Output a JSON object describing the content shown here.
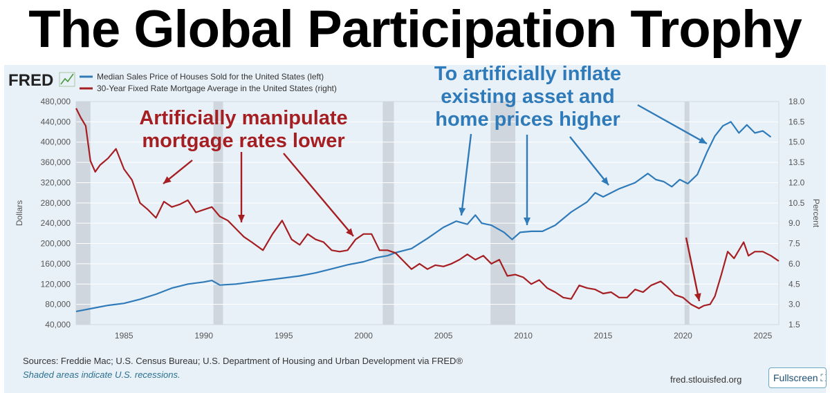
{
  "headline": "The Global Participation Trophy",
  "logo": {
    "text": "FRED",
    "icon": "chart-line-icon"
  },
  "colors": {
    "blue": "#2f7ab9",
    "red": "#a51e22",
    "recession": "#cfd6dd",
    "background": "#e9f1f8"
  },
  "chart_data": {
    "type": "line",
    "x_ticks": [
      1985,
      1990,
      1995,
      2000,
      2005,
      2010,
      2015,
      2020,
      2025
    ],
    "xlim": [
      1982,
      2026
    ],
    "left_axis": {
      "label": "Dollars",
      "ticks": [
        "480,000",
        "440,000",
        "400,000",
        "360,000",
        "320,000",
        "280,000",
        "240,000",
        "200,000",
        "160,000",
        "120,000",
        "80,000",
        "40,000"
      ],
      "ylim": [
        40000,
        480000
      ]
    },
    "right_axis": {
      "label": "Percent",
      "ticks": [
        "18.0",
        "16.5",
        "15.0",
        "13.5",
        "12.0",
        "10.5",
        "9.0",
        "7.5",
        "6.0",
        "4.5",
        "3.0",
        "1.5"
      ],
      "ylim": [
        1.5,
        18.0
      ]
    },
    "recessions": [
      [
        1982.0,
        1982.9
      ],
      [
        1990.6,
        1991.2
      ],
      [
        2001.2,
        2001.9
      ],
      [
        2007.95,
        2009.5
      ],
      [
        2020.1,
        2020.4
      ]
    ],
    "series": [
      {
        "name": "Median Sales Price of Houses Sold for the United States (left)",
        "axis": "left",
        "color": "#2f7ab9",
        "points": [
          [
            1982.0,
            66000
          ],
          [
            1983.0,
            72000
          ],
          [
            1984.0,
            78000
          ],
          [
            1985.0,
            82000
          ],
          [
            1986.0,
            90000
          ],
          [
            1987.0,
            100000
          ],
          [
            1988.0,
            112000
          ],
          [
            1989.0,
            120000
          ],
          [
            1990.0,
            124000
          ],
          [
            1990.5,
            127000
          ],
          [
            1991.0,
            118000
          ],
          [
            1992.0,
            120000
          ],
          [
            1993.0,
            124000
          ],
          [
            1994.0,
            128000
          ],
          [
            1995.0,
            132000
          ],
          [
            1996.0,
            136000
          ],
          [
            1997.0,
            142000
          ],
          [
            1998.0,
            150000
          ],
          [
            1999.0,
            158000
          ],
          [
            2000.0,
            164000
          ],
          [
            2000.8,
            172000
          ],
          [
            2001.5,
            176000
          ],
          [
            2002.0,
            182000
          ],
          [
            2003.0,
            190000
          ],
          [
            2004.0,
            210000
          ],
          [
            2005.0,
            232000
          ],
          [
            2005.8,
            244000
          ],
          [
            2006.5,
            238000
          ],
          [
            2007.0,
            256000
          ],
          [
            2007.4,
            240000
          ],
          [
            2008.0,
            236000
          ],
          [
            2008.8,
            222000
          ],
          [
            2009.3,
            208000
          ],
          [
            2009.8,
            222000
          ],
          [
            2010.5,
            224000
          ],
          [
            2011.2,
            224000
          ],
          [
            2012.0,
            236000
          ],
          [
            2013.0,
            262000
          ],
          [
            2014.0,
            282000
          ],
          [
            2014.5,
            300000
          ],
          [
            2015.0,
            292000
          ],
          [
            2016.0,
            308000
          ],
          [
            2017.0,
            320000
          ],
          [
            2017.8,
            338000
          ],
          [
            2018.3,
            326000
          ],
          [
            2018.8,
            322000
          ],
          [
            2019.3,
            312000
          ],
          [
            2019.8,
            326000
          ],
          [
            2020.3,
            318000
          ],
          [
            2020.9,
            336000
          ],
          [
            2021.5,
            380000
          ],
          [
            2022.0,
            412000
          ],
          [
            2022.5,
            432000
          ],
          [
            2023.0,
            440000
          ],
          [
            2023.5,
            418000
          ],
          [
            2024.0,
            434000
          ],
          [
            2024.5,
            418000
          ],
          [
            2025.0,
            422000
          ],
          [
            2025.5,
            410000
          ]
        ]
      },
      {
        "name": "30-Year Fixed Rate Mortgage Average in the United States (right)",
        "axis": "right",
        "color": "#a51e22",
        "points": [
          [
            1982.0,
            17.5
          ],
          [
            1982.3,
            16.8
          ],
          [
            1982.6,
            16.2
          ],
          [
            1982.9,
            13.6
          ],
          [
            1983.2,
            12.8
          ],
          [
            1983.5,
            13.3
          ],
          [
            1984.0,
            13.8
          ],
          [
            1984.5,
            14.5
          ],
          [
            1985.0,
            13.0
          ],
          [
            1985.5,
            12.2
          ],
          [
            1986.0,
            10.5
          ],
          [
            1986.5,
            10.0
          ],
          [
            1987.0,
            9.4
          ],
          [
            1987.5,
            10.6
          ],
          [
            1988.0,
            10.2
          ],
          [
            1988.5,
            10.4
          ],
          [
            1989.0,
            10.7
          ],
          [
            1989.5,
            9.8
          ],
          [
            1990.0,
            10.0
          ],
          [
            1990.5,
            10.2
          ],
          [
            1991.0,
            9.5
          ],
          [
            1991.5,
            9.2
          ],
          [
            1992.0,
            8.6
          ],
          [
            1992.5,
            8.0
          ],
          [
            1993.0,
            7.6
          ],
          [
            1993.7,
            7.0
          ],
          [
            1994.3,
            8.2
          ],
          [
            1994.9,
            9.2
          ],
          [
            1995.5,
            7.8
          ],
          [
            1996.0,
            7.4
          ],
          [
            1996.5,
            8.2
          ],
          [
            1997.0,
            7.8
          ],
          [
            1997.5,
            7.6
          ],
          [
            1998.0,
            7.0
          ],
          [
            1998.5,
            6.9
          ],
          [
            1999.0,
            7.0
          ],
          [
            1999.5,
            7.8
          ],
          [
            2000.0,
            8.2
          ],
          [
            2000.5,
            8.2
          ],
          [
            2001.0,
            7.0
          ],
          [
            2001.5,
            7.0
          ],
          [
            2002.0,
            6.8
          ],
          [
            2002.5,
            6.2
          ],
          [
            2003.0,
            5.6
          ],
          [
            2003.5,
            6.0
          ],
          [
            2004.0,
            5.6
          ],
          [
            2004.5,
            5.9
          ],
          [
            2005.0,
            5.8
          ],
          [
            2005.5,
            6.0
          ],
          [
            2006.0,
            6.3
          ],
          [
            2006.5,
            6.7
          ],
          [
            2007.0,
            6.3
          ],
          [
            2007.5,
            6.6
          ],
          [
            2008.0,
            6.0
          ],
          [
            2008.5,
            6.3
          ],
          [
            2009.0,
            5.1
          ],
          [
            2009.5,
            5.2
          ],
          [
            2010.0,
            5.0
          ],
          [
            2010.5,
            4.5
          ],
          [
            2011.0,
            4.8
          ],
          [
            2011.5,
            4.2
          ],
          [
            2012.0,
            3.9
          ],
          [
            2012.5,
            3.5
          ],
          [
            2013.0,
            3.4
          ],
          [
            2013.5,
            4.4
          ],
          [
            2014.0,
            4.2
          ],
          [
            2014.5,
            4.1
          ],
          [
            2015.0,
            3.8
          ],
          [
            2015.5,
            3.9
          ],
          [
            2016.0,
            3.5
          ],
          [
            2016.5,
            3.5
          ],
          [
            2017.0,
            4.1
          ],
          [
            2017.5,
            3.9
          ],
          [
            2018.0,
            4.4
          ],
          [
            2018.6,
            4.7
          ],
          [
            2019.0,
            4.3
          ],
          [
            2019.5,
            3.7
          ],
          [
            2020.0,
            3.5
          ],
          [
            2020.5,
            3.0
          ],
          [
            2021.0,
            2.7
          ],
          [
            2021.3,
            2.9
          ],
          [
            2021.7,
            3.0
          ],
          [
            2022.0,
            3.6
          ],
          [
            2022.4,
            5.2
          ],
          [
            2022.8,
            6.9
          ],
          [
            2023.2,
            6.4
          ],
          [
            2023.8,
            7.6
          ],
          [
            2024.1,
            6.6
          ],
          [
            2024.5,
            6.9
          ],
          [
            2025.0,
            6.9
          ],
          [
            2025.5,
            6.6
          ],
          [
            2026.0,
            6.2
          ]
        ]
      }
    ],
    "legend": [
      "Median Sales Price of Houses Sold for the United States (left)",
      "30-Year Fixed Rate Mortgage Average in the United States (right)"
    ],
    "annotations": {
      "red": [
        "Artificially manipulate",
        "mortgage rates lower"
      ],
      "blue": [
        "To artificially inflate",
        "existing asset and",
        "home prices higher"
      ]
    }
  },
  "footer": {
    "sources": "Sources: Freddie Mac; U.S. Census Bureau; U.S. Department of Housing and Urban Development via FRED®",
    "recession_note": "Shaded areas indicate U.S. recessions.",
    "url": "fred.stlouisfed.org",
    "fullscreen": "Fullscreen"
  }
}
